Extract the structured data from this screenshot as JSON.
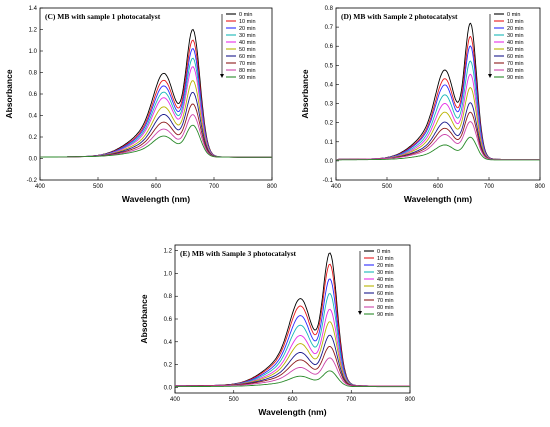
{
  "chart_data": [
    {
      "type": "line",
      "title": "(C) MB with sample 1 photocatalyst",
      "xlabel": "Wavelength (nm)",
      "ylabel": "Absorbance",
      "xlim": [
        400,
        800
      ],
      "ylim": [
        -0.2,
        1.4
      ],
      "xticks": [
        400,
        500,
        600,
        700,
        800
      ],
      "yticks": [
        -0.2,
        0.0,
        0.2,
        0.4,
        0.6,
        0.8,
        1.0,
        1.2,
        1.4
      ],
      "ytick_labels": [
        "-0.2",
        "0.0",
        "0.2",
        "0.4",
        "0.6",
        "0.8",
        "1.0",
        "1.2",
        "1.4"
      ],
      "legend_position": "top-right",
      "series": [
        {
          "name": "0 min",
          "color": "#000000",
          "peak": 1.2
        },
        {
          "name": "10 min",
          "color": "#e8191c",
          "peak": 1.1
        },
        {
          "name": "20 min",
          "color": "#2a2aff",
          "peak": 1.02
        },
        {
          "name": "30 min",
          "color": "#17b8b8",
          "peak": 0.93
        },
        {
          "name": "40 min",
          "color": "#e630e6",
          "peak": 0.85
        },
        {
          "name": "50 min",
          "color": "#b9b300",
          "peak": 0.72
        },
        {
          "name": "60 min",
          "color": "#1a1a8c",
          "peak": 0.61
        },
        {
          "name": "70 min",
          "color": "#8c1a1a",
          "peak": 0.5
        },
        {
          "name": "80 min",
          "color": "#cc44aa",
          "peak": 0.4
        },
        {
          "name": "90 min",
          "color": "#2a8a2a",
          "peak": 0.3
        }
      ]
    },
    {
      "type": "line",
      "title": "(D) MB with Sample 2 photocatalyst",
      "xlabel": "Wavelength (nm)",
      "ylabel": "Absorbance",
      "xlim": [
        400,
        800
      ],
      "ylim": [
        -0.1,
        0.8
      ],
      "xticks": [
        400,
        500,
        600,
        700,
        800
      ],
      "yticks": [
        -0.1,
        0.0,
        0.1,
        0.2,
        0.3,
        0.4,
        0.5,
        0.6,
        0.7,
        0.8
      ],
      "ytick_labels": [
        "-0.1",
        "0.0",
        "0.1",
        "0.2",
        "0.3",
        "0.4",
        "0.5",
        "0.6",
        "0.7",
        "0.8"
      ],
      "legend_position": "top-right",
      "series": [
        {
          "name": "0 min",
          "color": "#000000",
          "peak": 0.72
        },
        {
          "name": "10 min",
          "color": "#e8191c",
          "peak": 0.65
        },
        {
          "name": "20 min",
          "color": "#2a2aff",
          "peak": 0.6
        },
        {
          "name": "30 min",
          "color": "#17b8b8",
          "peak": 0.52
        },
        {
          "name": "40 min",
          "color": "#e630e6",
          "peak": 0.45
        },
        {
          "name": "50 min",
          "color": "#b9b300",
          "peak": 0.38
        },
        {
          "name": "60 min",
          "color": "#1a1a8c",
          "peak": 0.3
        },
        {
          "name": "70 min",
          "color": "#8c1a1a",
          "peak": 0.25
        },
        {
          "name": "80 min",
          "color": "#cc44aa",
          "peak": 0.2
        },
        {
          "name": "90 min",
          "color": "#2a8a2a",
          "peak": 0.12
        }
      ]
    },
    {
      "type": "line",
      "title": "(E) MB with Sample 3 photocatalyst",
      "xlabel": "Wavelength (nm)",
      "ylabel": "Absorbance",
      "xlim": [
        400,
        800
      ],
      "ylim": [
        -0.05,
        1.25
      ],
      "xticks": [
        400,
        500,
        600,
        700,
        800
      ],
      "yticks": [
        0.0,
        0.2,
        0.4,
        0.6,
        0.8,
        1.0,
        1.2
      ],
      "ytick_labels": [
        "0.0",
        "0.2",
        "0.4",
        "0.6",
        "0.8",
        "1.0",
        "1.2"
      ],
      "legend_position": "top-right",
      "series": [
        {
          "name": "0 min",
          "color": "#000000",
          "peak": 1.18
        },
        {
          "name": "10 min",
          "color": "#e8191c",
          "peak": 1.08
        },
        {
          "name": "20 min",
          "color": "#2a2aff",
          "peak": 0.95
        },
        {
          "name": "30 min",
          "color": "#17b8b8",
          "peak": 0.82
        },
        {
          "name": "40 min",
          "color": "#e630e6",
          "peak": 0.68
        },
        {
          "name": "50 min",
          "color": "#b9b300",
          "peak": 0.57
        },
        {
          "name": "60 min",
          "color": "#1a1a8c",
          "peak": 0.45
        },
        {
          "name": "70 min",
          "color": "#8c1a1a",
          "peak": 0.35
        },
        {
          "name": "80 min",
          "color": "#cc44aa",
          "peak": 0.25
        },
        {
          "name": "90 min",
          "color": "#2a8a2a",
          "peak": 0.14
        }
      ]
    }
  ]
}
